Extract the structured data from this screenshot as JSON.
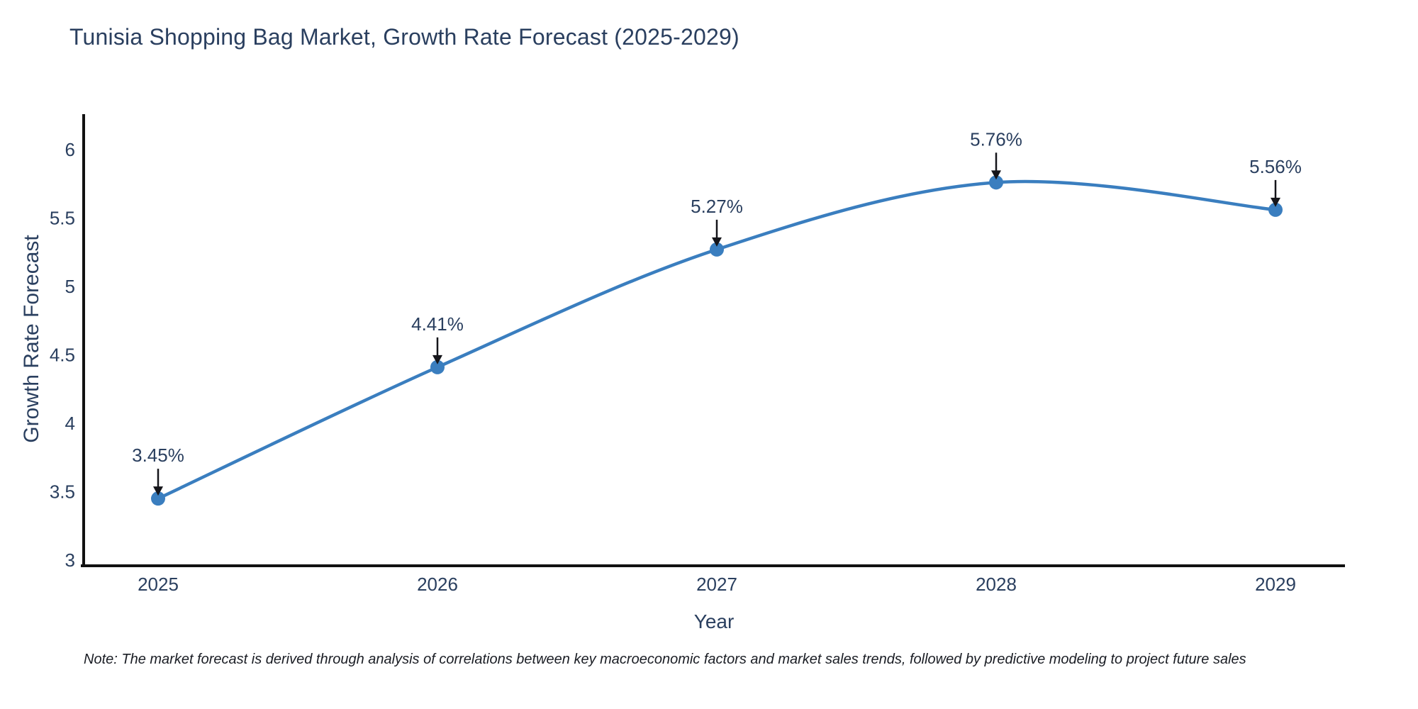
{
  "chart_data": {
    "type": "line",
    "title": "Tunisia Shopping Bag Market, Growth Rate Forecast (2025-2029)",
    "xlabel": "Year",
    "ylabel": "Growth Rate Forecast",
    "categories": [
      "2025",
      "2026",
      "2027",
      "2028",
      "2029"
    ],
    "values": [
      3.45,
      4.41,
      5.27,
      5.76,
      5.56
    ],
    "point_labels": [
      "3.45%",
      "4.41%",
      "5.27%",
      "5.76%",
      "5.56%"
    ],
    "units": "%",
    "yticks": [
      3,
      3.5,
      4,
      4.5,
      5,
      5.5,
      6
    ],
    "ylim": [
      2.95,
      6.26
    ],
    "line_shape": "spline",
    "grid": false,
    "legend": "none",
    "annotation_style": "label-with-down-arrow-to-point",
    "footnote": "Note: The market forecast is derived through analysis of correlations between key macroeconomic factors and market sales trends, followed by predictive modeling to project future sales",
    "colors": {
      "line": "#3a7ebf",
      "marker": "#3a7ebf",
      "axis": "#111111",
      "text": "#2a3f5f",
      "arrow": "#15151a",
      "title": "#2a3f5f",
      "note": "#1a1d24",
      "background": "#ffffff"
    }
  }
}
